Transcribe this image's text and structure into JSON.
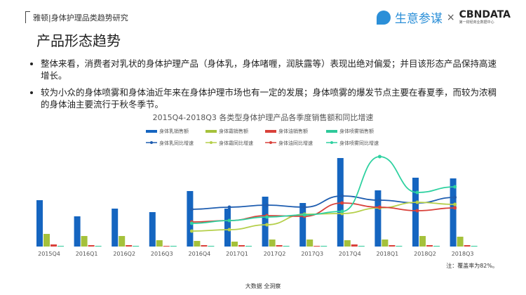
{
  "header": {
    "report": "雅顿|身体护理品类趋势研究",
    "logo_left": "生意参谋",
    "logo_sep": "×",
    "logo_right": "CBNDATA",
    "logo_right_sub": "第一财经商业数据中心"
  },
  "page_title": "产品形态趋势",
  "bullets": [
    "整体来看，消费者对乳状的身体护理产品（身体乳，身体啫喱，润肤露等）表现出绝对偏爱；并目该形态产品保持高速增长。",
    "较为小众的身体喷雾和身体油近年来在身体护理市场也有一定的发展；身体喷雾的爆发节点主要在春夏季，而较为浓稠的身体油主要流行于秋冬季节。"
  ],
  "note": "注：覆盖率为82%。",
  "footer": "大数据 全洞察",
  "chart_data": {
    "type": "bar+line",
    "title": "2015Q4-2018Q3 各类型身体护理产品各季度销售额和同比增速",
    "categories": [
      "2015Q4",
      "2016Q1",
      "2016Q2",
      "2016Q3",
      "2016Q4",
      "2017Q1",
      "2017Q2",
      "2017Q3",
      "2017Q4",
      "2018Q1",
      "2018Q2",
      "2018Q3"
    ],
    "legend_position": "top",
    "grid": false,
    "bars": [
      {
        "name": "身体乳销售额",
        "color": "#1565c0",
        "values": [
          66,
          43,
          54,
          49,
          79,
          54,
          71,
          62,
          126,
          80,
          98,
          97
        ]
      },
      {
        "name": "身体霜销售额",
        "color": "#a5c13b",
        "values": [
          18,
          15,
          15,
          9,
          8,
          7,
          10,
          10,
          9,
          10,
          15,
          14
        ]
      },
      {
        "name": "身体油销售额",
        "color": "#d9413a",
        "values": [
          3,
          2,
          2,
          1,
          2,
          2,
          2,
          1,
          3,
          2,
          2,
          2
        ]
      },
      {
        "name": "身体喷雾销售额",
        "color": "#2ec99a",
        "values": [
          1,
          1,
          1,
          1,
          1,
          1,
          1,
          1,
          1,
          1,
          1,
          1
        ]
      }
    ],
    "lines": [
      {
        "name": "身体乳同比增速",
        "color": "#1e5db0",
        "values": [
          null,
          null,
          null,
          null,
          53,
          56,
          59,
          56,
          72,
          66,
          62,
          70
        ]
      },
      {
        "name": "身体霜同比增速",
        "color": "#b5cf4a",
        "values": [
          null,
          null,
          null,
          null,
          22,
          24,
          31,
          46,
          47,
          55,
          63,
          60
        ]
      },
      {
        "name": "身体油同比增速",
        "color": "#d9413a",
        "values": [
          null,
          null,
          null,
          null,
          35,
          37,
          44,
          43,
          62,
          56,
          51,
          55
        ]
      },
      {
        "name": "身体喷雾同比增速",
        "color": "#2ed1a0",
        "values": [
          null,
          null,
          null,
          null,
          33,
          37,
          42,
          45,
          50,
          128,
          77,
          85
        ]
      }
    ]
  }
}
